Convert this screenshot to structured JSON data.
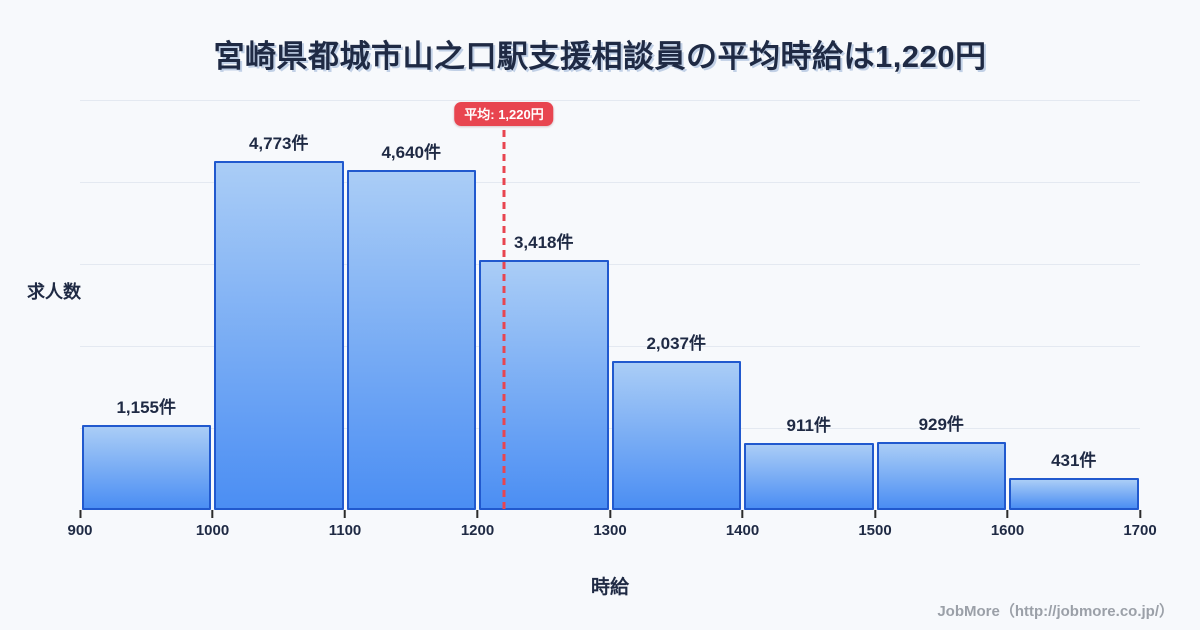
{
  "title": "宮崎県都城市山之口駅支援相談員の平均時給は1,220円",
  "chart_data": {
    "type": "bar",
    "subtype": "histogram",
    "title": "宮崎県都城市山之口駅支援相談員の平均時給は1,220円",
    "xlabel": "時給",
    "ylabel": "求人数",
    "bin_edges": [
      900,
      1000,
      1100,
      1200,
      1300,
      1400,
      1500,
      1600,
      1700
    ],
    "x_tick_labels": [
      "900",
      "1000",
      "1100",
      "1200",
      "1300",
      "1400",
      "1500",
      "1600",
      "1700"
    ],
    "values": [
      1155,
      4773,
      4640,
      3418,
      2037,
      911,
      929,
      431
    ],
    "bar_labels": [
      "1,155件",
      "4,773件",
      "4,640件",
      "3,418件",
      "2,037件",
      "911件",
      "929件",
      "431件"
    ],
    "ylim": [
      0,
      5600
    ],
    "grid": "horizontal",
    "grid_divisions": 5,
    "legend": "none",
    "mean": {
      "value": 1220,
      "label": "平均: 1,220円"
    },
    "colors": {
      "background": "#f7f9fc",
      "text": "#1f2a44",
      "grid": "#e4e9f1",
      "bar_gradient_top": "#aacdf6",
      "bar_gradient_bottom": "#4b8ef3",
      "bar_border": "#2159ce",
      "accent_red": "#e84550",
      "badge_text": "#ffffff",
      "footer_text": "#9ba0a8"
    }
  },
  "footer": {
    "credit": "JobMore（http://jobmore.co.jp/）"
  }
}
